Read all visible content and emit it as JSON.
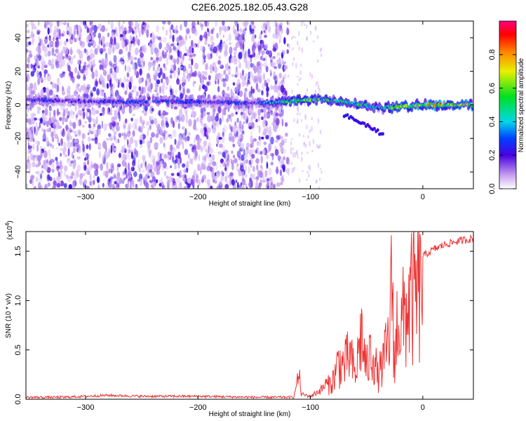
{
  "title": "C2E6.2025.182.05.43.G28",
  "chart_data": [
    {
      "type": "heatmap",
      "xlabel": "Height of straight line (km)",
      "ylabel": "Frequency (Hz)",
      "xlim": [
        -353,
        45
      ],
      "ylim": [
        -50,
        50
      ],
      "xticks": [
        -300,
        -200,
        -100,
        0
      ],
      "yticks": [
        -40,
        -20,
        0,
        20,
        40
      ],
      "colorbar": {
        "label": "Normalized spectral amplitude",
        "range": [
          0,
          1
        ],
        "ticks": [
          "0.0",
          "0.2",
          "0.4",
          "0.6",
          "0.8"
        ],
        "colormap": "rainbow (white→violet→blue→cyan→green→yellow→orange→red→magenta)"
      },
      "ridge": [
        {
          "x": -340,
          "f": 3,
          "amp": 0.3
        },
        {
          "x": -300,
          "f": 2,
          "amp": 0.25
        },
        {
          "x": -250,
          "f": 2,
          "amp": 0.35
        },
        {
          "x": -200,
          "f": 2,
          "amp": 0.3
        },
        {
          "x": -150,
          "f": 1,
          "amp": 0.3
        },
        {
          "x": -120,
          "f": 2,
          "amp": 0.6
        },
        {
          "x": -100,
          "f": 3,
          "amp": 0.7
        },
        {
          "x": -80,
          "f": 3,
          "amp": 0.6
        },
        {
          "x": -60,
          "f": 1,
          "amp": 0.6
        },
        {
          "x": -40,
          "f": -2,
          "amp": 0.5
        },
        {
          "x": -20,
          "f": -1,
          "amp": 0.7
        },
        {
          "x": 0,
          "f": 0,
          "amp": 0.9
        },
        {
          "x": 20,
          "f": 0,
          "amp": 0.85
        },
        {
          "x": 45,
          "f": 0,
          "amp": 0.8
        }
      ],
      "secondary_branch": [
        {
          "x": -70,
          "f": -6
        },
        {
          "x": -50,
          "f": -12
        },
        {
          "x": -35,
          "f": -18
        }
      ],
      "noise_cutoff_x": -120
    },
    {
      "type": "line",
      "series": [
        {
          "color": "#ee3333",
          "x": [
            -353,
            -320,
            -280,
            -250,
            -200,
            -150,
            -115,
            -110,
            -108,
            -100,
            -90,
            -80,
            -75,
            -70,
            -65,
            -60,
            -55,
            -50,
            -45,
            -40,
            -35,
            -30,
            -27,
            -25,
            -22,
            -20,
            -15,
            -10,
            -5,
            0,
            10,
            20,
            30,
            45
          ],
          "y": [
            0.02,
            0.02,
            0.04,
            0.03,
            0.03,
            0.02,
            0.02,
            0.25,
            0.05,
            0.03,
            0.1,
            0.25,
            0.5,
            0.45,
            0.6,
            0.3,
            0.9,
            0.4,
            0.7,
            0.3,
            0.5,
            0.8,
            1.65,
            0.3,
            1.35,
            0.9,
            1.2,
            1.35,
            1.4,
            1.45,
            1.52,
            1.57,
            1.6,
            1.63
          ]
        }
      ],
      "xlabel": "Height of straight line (km)",
      "ylabel": "SNR (10 * v/v)",
      "y_multiplier": "(x10",
      "y_multiplier_exp": "4",
      "xlim": [
        -353,
        45
      ],
      "ylim": [
        0,
        1.7
      ],
      "xticks": [
        -300,
        -200,
        -100,
        0
      ],
      "yticks": [
        "0.0",
        "0.5",
        "1.0",
        "1.5"
      ]
    }
  ]
}
